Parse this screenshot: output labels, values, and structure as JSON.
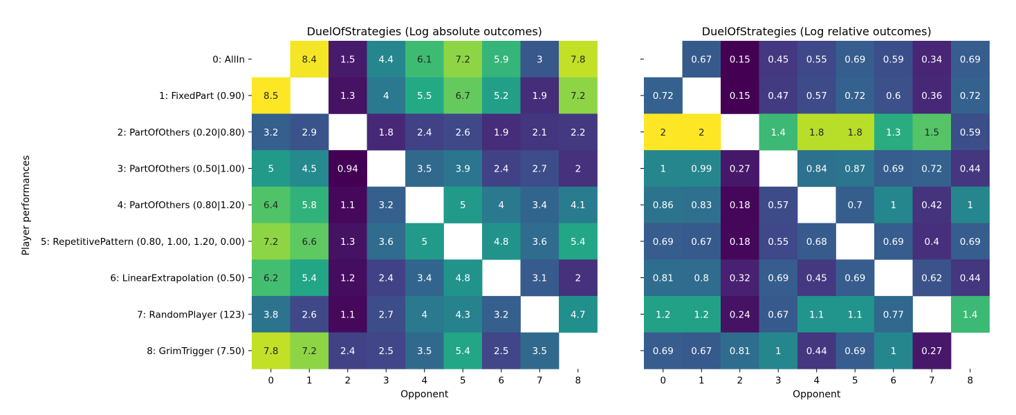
{
  "chart_data": {
    "type": "heatmap",
    "ylabel": "Player performances",
    "xlabel": "Opponent",
    "x_ticks": [
      "0",
      "1",
      "2",
      "3",
      "4",
      "5",
      "6",
      "7",
      "8"
    ],
    "y_ticks": [
      "0: AllIn",
      "1: FixedPart (0.90)",
      "2: PartOfOthers (0.20|0.80)",
      "3: PartOfOthers (0.50|1.00)",
      "4: PartOfOthers (0.80|1.20)",
      "5: RepetitivePattern (0.80, 1.00, 1.20, 0.00)",
      "6: LinearExtrapolation (0.50)",
      "7: RandomPlayer (123)",
      "8: GrimTrigger (7.50)"
    ],
    "colormap": "viridis",
    "panels": [
      {
        "title": "DuelOfStrategies (Log absolute outcomes)",
        "xlabel": "Opponent",
        "vmin": 0.94,
        "vmax": 8.5,
        "values": [
          [
            null,
            8.4,
            1.5,
            4.4,
            6.1,
            7.2,
            5.9,
            3,
            7.8
          ],
          [
            8.5,
            null,
            1.3,
            4,
            5.5,
            6.7,
            5.2,
            1.9,
            7.2
          ],
          [
            3.2,
            2.9,
            null,
            1.8,
            2.4,
            2.6,
            1.9,
            2.1,
            2.2
          ],
          [
            5,
            4.5,
            0.94,
            null,
            3.5,
            3.9,
            2.4,
            2.7,
            2
          ],
          [
            6.4,
            5.8,
            1.1,
            3.2,
            null,
            5,
            4,
            3.4,
            4.1
          ],
          [
            7.2,
            6.6,
            1.3,
            3.6,
            5,
            null,
            4.8,
            3.6,
            5.4
          ],
          [
            6.2,
            5.4,
            1.2,
            2.4,
            3.4,
            4.8,
            null,
            3.1,
            2
          ],
          [
            3.8,
            2.6,
            1.1,
            2.7,
            4,
            4.3,
            3.2,
            null,
            4.7
          ],
          [
            7.8,
            7.2,
            2.4,
            2.5,
            3.5,
            5.4,
            2.5,
            3.5,
            null
          ]
        ]
      },
      {
        "title": "DuelOfStrategies (Log relative outcomes)",
        "xlabel": "Opponent",
        "vmin": 0.15,
        "vmax": 2,
        "values": [
          [
            null,
            0.67,
            0.15,
            0.45,
            0.55,
            0.69,
            0.59,
            0.34,
            0.69
          ],
          [
            0.72,
            null,
            0.15,
            0.47,
            0.57,
            0.72,
            0.6,
            0.36,
            0.72
          ],
          [
            2,
            2,
            null,
            1.4,
            1.8,
            1.8,
            1.3,
            1.5,
            0.59
          ],
          [
            1,
            0.99,
            0.27,
            null,
            0.84,
            0.87,
            0.69,
            0.72,
            0.44
          ],
          [
            0.86,
            0.83,
            0.18,
            0.57,
            null,
            0.7,
            1,
            0.42,
            1
          ],
          [
            0.69,
            0.67,
            0.18,
            0.55,
            0.68,
            null,
            0.69,
            0.4,
            0.69
          ],
          [
            0.81,
            0.8,
            0.32,
            0.69,
            0.45,
            0.69,
            null,
            0.62,
            0.44
          ],
          [
            1.2,
            1.2,
            0.24,
            0.67,
            1.1,
            1.1,
            0.77,
            null,
            1.4
          ],
          [
            0.69,
            0.67,
            0.81,
            1,
            0.44,
            0.69,
            1,
            0.27,
            null
          ]
        ]
      }
    ]
  }
}
